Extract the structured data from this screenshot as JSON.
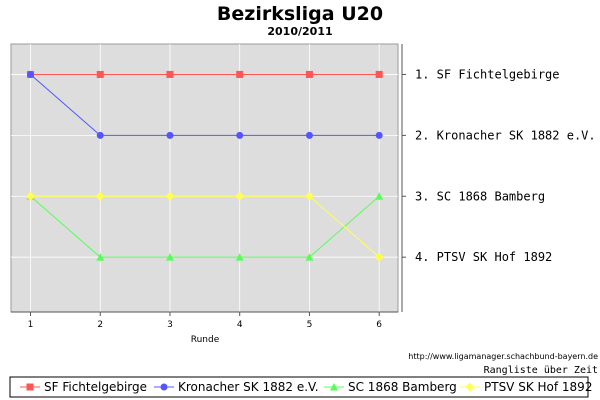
{
  "chart_data": {
    "type": "line",
    "title": "Bezirksliga U20",
    "subtitle": "2010/2011",
    "xlabel": "Runde",
    "x": [
      1,
      2,
      3,
      4,
      5,
      6
    ],
    "ylim": [
      0.5,
      4.9
    ],
    "y_inverted": true,
    "grid": true,
    "rank_labels": [
      "1.  SF Fichtelgebirge",
      "2.  Kronacher SK 1882 e.V.",
      "3.  SC 1868 Bamberg",
      "4.  PTSV SK Hof 1892"
    ],
    "series": [
      {
        "name": "SF Fichtelgebirge",
        "color": "#ff5555",
        "marker": "square",
        "values": [
          1,
          1,
          1,
          1,
          1,
          1
        ]
      },
      {
        "name": "Kronacher SK 1882 e.V.",
        "color": "#5555ff",
        "marker": "circle",
        "values": [
          1,
          2,
          2,
          2,
          2,
          2
        ]
      },
      {
        "name": "SC 1868 Bamberg",
        "color": "#55ff55",
        "marker": "triangle",
        "values": [
          3,
          4,
          4,
          4,
          4,
          3
        ]
      },
      {
        "name": "PTSV SK Hof 1892",
        "color": "#ffff55",
        "marker": "diamond",
        "values": [
          3,
          3,
          3,
          3,
          3,
          4
        ]
      }
    ],
    "source_url": "http://www.ligamanager.schachbund-bayern.de",
    "caption": "Rangliste über Zeit",
    "plot_background": "#dddddd"
  }
}
